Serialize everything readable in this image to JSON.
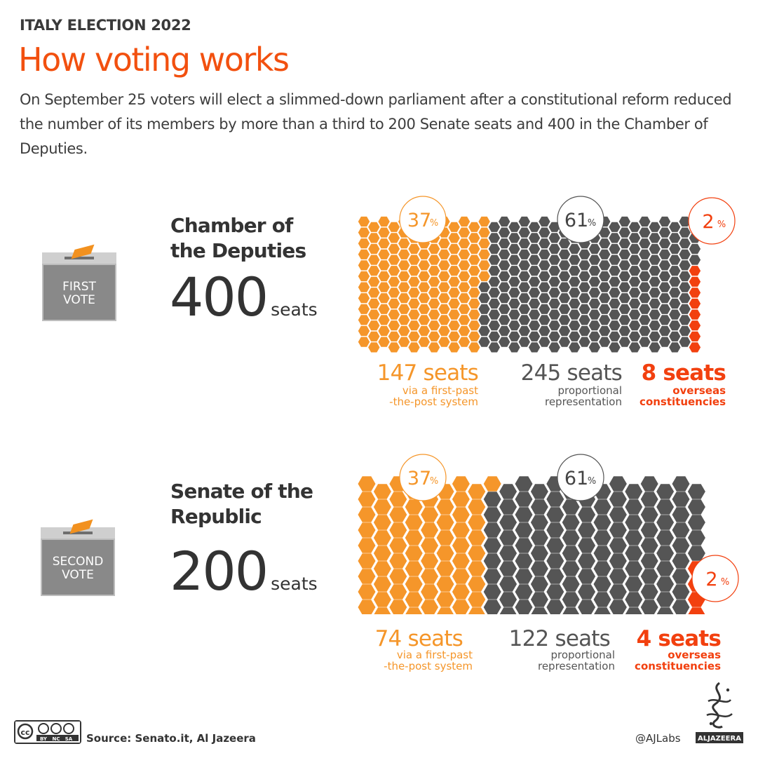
{
  "header": {
    "kicker": "ITALY ELECTION 2022",
    "title": "How voting works",
    "intro": "On September 25 voters will elect a slimmed-down parliament after a constitutional reform reduced the number of its members by more than a third to 200 Senate seats and 400 in the Chamber of Deputies."
  },
  "colors": {
    "fptp": "#f5962a",
    "proportional": "#555555",
    "overseas": "#f2400f",
    "title": "#f2500f"
  },
  "chambers": [
    {
      "ballot_label": [
        "FIRST",
        "VOTE"
      ],
      "name": [
        "Chamber of",
        "the Deputies"
      ],
      "seats_number": "400",
      "seats_word": "seats",
      "segments": [
        {
          "percent": "37",
          "pct_sign": "%",
          "seats": "147 seats",
          "desc": [
            "via a first-past",
            "-the-post system"
          ],
          "value": 147
        },
        {
          "percent": "61",
          "pct_sign": "%",
          "seats": "245 seats",
          "desc": [
            "proportional",
            "representation"
          ],
          "value": 245
        },
        {
          "percent": "2",
          "pct_sign": "%",
          "seats": "8 seats",
          "desc": [
            "overseas",
            "constituencies"
          ],
          "value": 8
        }
      ]
    },
    {
      "ballot_label": [
        "SECOND",
        "VOTE"
      ],
      "name": [
        "Senate of the",
        "Republic"
      ],
      "seats_number": "200",
      "seats_word": "seats",
      "segments": [
        {
          "percent": "37",
          "pct_sign": "%",
          "seats": "74 seats",
          "desc": [
            "via a first-past",
            "-the-post system"
          ],
          "value": 74
        },
        {
          "percent": "61",
          "pct_sign": "%",
          "seats": "122 seats",
          "desc": [
            "proportional",
            "representation"
          ],
          "value": 122
        },
        {
          "percent": "2",
          "pct_sign": "%",
          "seats": "4 seats",
          "desc": [
            "overseas",
            "constituencies"
          ],
          "value": 4
        }
      ]
    }
  ],
  "footer": {
    "source": "Source: Senato.it, Al Jazeera",
    "handle": "@AJLabs",
    "license_tags": [
      "BY",
      "NC",
      "SA"
    ],
    "brand": "ALJAZEERA"
  }
}
